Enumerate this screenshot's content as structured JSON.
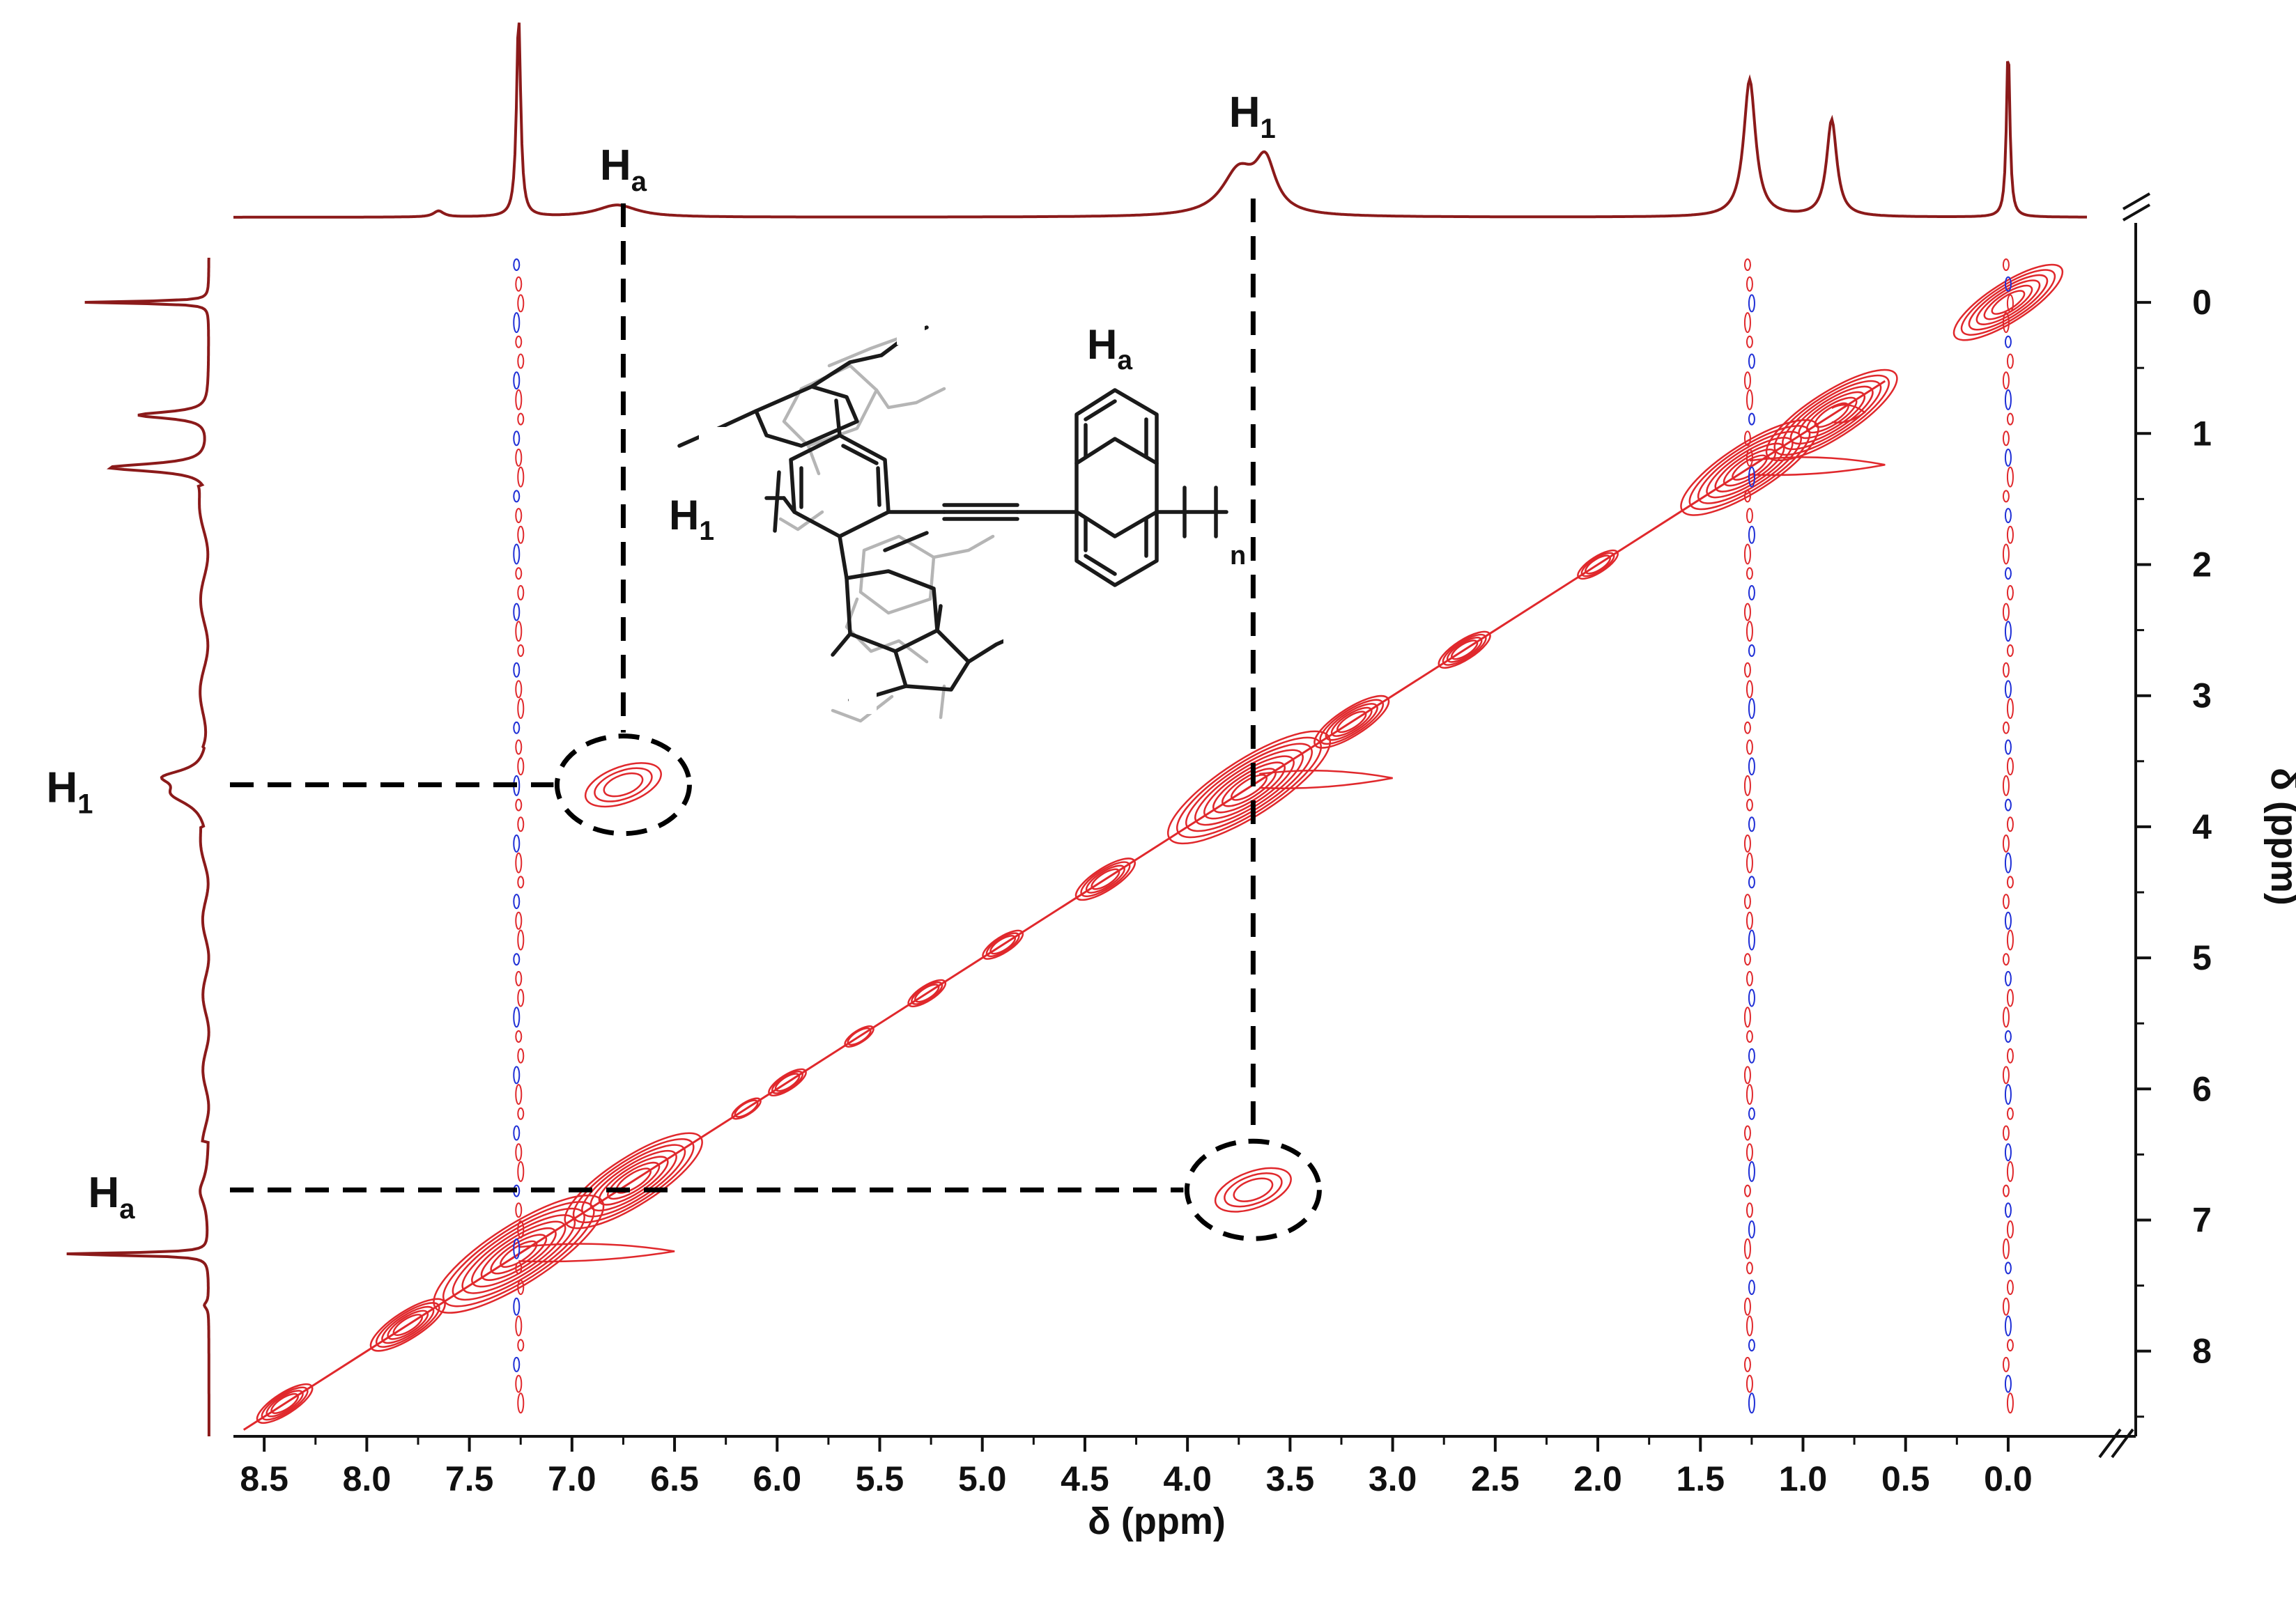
{
  "chart_data": {
    "type": "2D-NMR-contour",
    "title": "",
    "xlabel": "δ (ppm)",
    "ylabel": "δ (ppm)",
    "xlim": [
      8.65,
      -0.35
    ],
    "ylim": [
      -0.5,
      8.65
    ],
    "x_ticks": [
      8.5,
      8.0,
      7.5,
      7.0,
      6.5,
      6.0,
      5.5,
      5.0,
      4.5,
      4.0,
      3.5,
      3.0,
      2.5,
      2.0,
      1.5,
      1.0,
      0.5,
      0.0
    ],
    "x_tick_labels": [
      "8.5",
      "8.0",
      "7.5",
      "7.0",
      "6.5",
      "6.0",
      "5.5",
      "5.0",
      "4.5",
      "4.0",
      "3.5",
      "3.0",
      "2.5",
      "2.0",
      "1.5",
      "1.0",
      "0.5",
      "0.0"
    ],
    "y_ticks": [
      0,
      1,
      2,
      3,
      4,
      5,
      6,
      7,
      8
    ],
    "y_tick_labels": [
      "0",
      "1",
      "2",
      "3",
      "4",
      "5",
      "6",
      "7",
      "8"
    ],
    "projection_1d": {
      "peaks": [
        {
          "ppm": 7.26,
          "height": 1.0,
          "width": 0.012
        },
        {
          "ppm": 7.65,
          "height": 0.03,
          "width": 0.03
        },
        {
          "ppm": 6.78,
          "height": 0.06,
          "width": 0.12
        },
        {
          "ppm": 3.75,
          "height": 0.22,
          "width": 0.1
        },
        {
          "ppm": 3.62,
          "height": 0.24,
          "width": 0.06
        },
        {
          "ppm": 1.26,
          "height": 0.68,
          "width": 0.035
        },
        {
          "ppm": 0.86,
          "height": 0.48,
          "width": 0.03
        },
        {
          "ppm": 0.0,
          "height": 0.85,
          "width": 0.01
        }
      ]
    },
    "diagonal_peaks": [
      {
        "ppm": 8.4,
        "intensity": 0.5
      },
      {
        "ppm": 7.8,
        "intensity": 0.6
      },
      {
        "ppm": 7.26,
        "intensity": 1.0
      },
      {
        "ppm": 6.7,
        "intensity": 0.9
      },
      {
        "ppm": 6.15,
        "intensity": 0.3
      },
      {
        "ppm": 5.95,
        "intensity": 0.35
      },
      {
        "ppm": 5.6,
        "intensity": 0.3
      },
      {
        "ppm": 5.27,
        "intensity": 0.35
      },
      {
        "ppm": 4.9,
        "intensity": 0.4
      },
      {
        "ppm": 4.4,
        "intensity": 0.55
      },
      {
        "ppm": 3.7,
        "intensity": 0.95
      },
      {
        "ppm": 3.2,
        "intensity": 0.6
      },
      {
        "ppm": 2.65,
        "intensity": 0.45
      },
      {
        "ppm": 2.0,
        "intensity": 0.4
      },
      {
        "ppm": 1.26,
        "intensity": 0.9
      },
      {
        "ppm": 0.86,
        "intensity": 0.85
      },
      {
        "ppm": 0.0,
        "intensity": 0.8
      }
    ],
    "cross_peaks": [
      {
        "x": 6.75,
        "y": 3.68,
        "pair": "Ha–H1"
      },
      {
        "x": 3.68,
        "y": 6.77,
        "pair": "H1–Ha"
      }
    ],
    "annotations": [
      {
        "label": "H",
        "subscript": "a",
        "ppm": 6.75,
        "position": "top-projection"
      },
      {
        "label": "H",
        "subscript": "1",
        "ppm": 3.65,
        "position": "top-projection"
      },
      {
        "label": "H",
        "subscript": "1",
        "ppm": 3.68,
        "position": "left-projection"
      },
      {
        "label": "H",
        "subscript": "a",
        "ppm": 6.77,
        "position": "left-projection"
      }
    ],
    "structure_labels": {
      "h1": "H",
      "h1_sub": "1",
      "ha": "H",
      "ha_sub": "a",
      "repeat": "n"
    },
    "colors": {
      "positive": "#e0282c",
      "negative": "#1f2fd6",
      "spectrum": "#8b1a1a",
      "guide": "#000000",
      "structure_gray": "#b0b0b0"
    }
  }
}
